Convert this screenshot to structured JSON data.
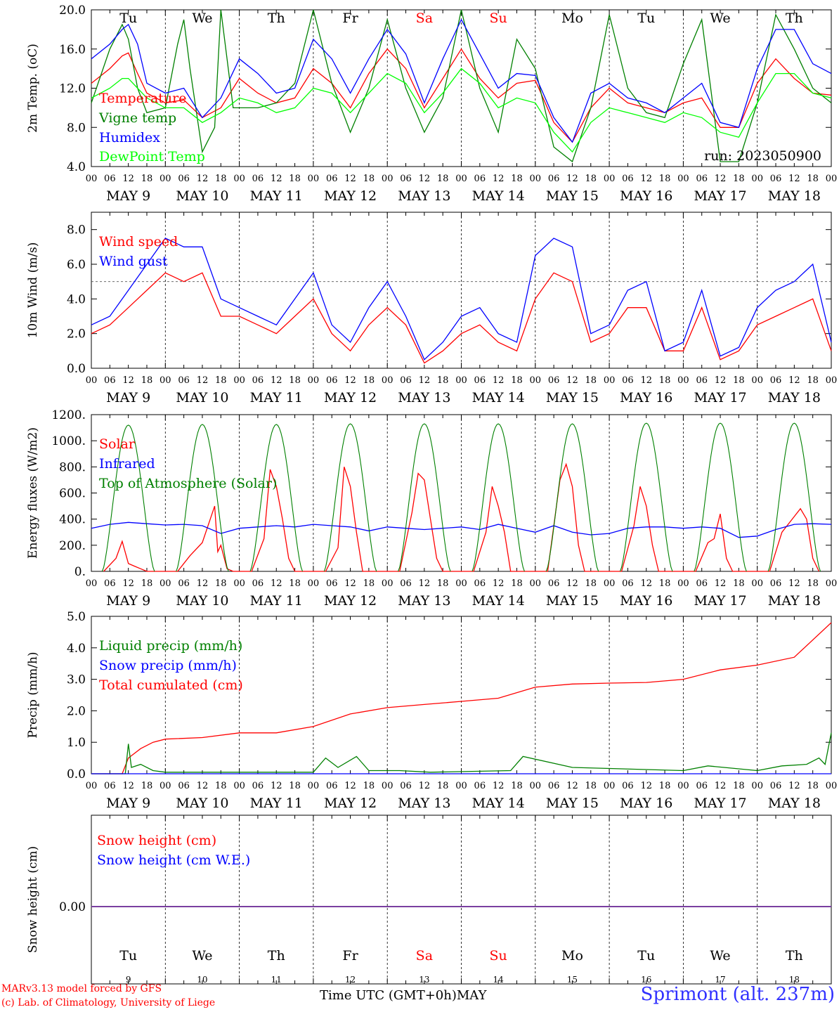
{
  "chart_data": [
    {
      "type": "line",
      "ylabel": "2m Temp. (oC)",
      "ylim": [
        4.0,
        20.0
      ],
      "yticks": [
        "4.0",
        "8.0",
        "12.0",
        "16.0",
        "20.0"
      ],
      "legend": [
        "Temperature",
        "Vigne temp",
        "Humidex",
        "DewPoint Temp"
      ],
      "annotation": "run: 2023050900",
      "series": [
        {
          "name": "Temperature",
          "color": "#ff0000",
          "x": [
            0,
            6,
            10,
            12,
            15,
            18,
            24,
            30,
            36,
            42,
            48,
            54,
            60,
            66,
            72,
            78,
            84,
            90,
            96,
            102,
            108,
            114,
            120,
            126,
            132,
            138,
            144,
            150,
            156,
            162,
            168,
            174,
            180,
            186,
            192,
            198,
            204,
            210,
            216,
            222,
            228,
            234,
            240
          ],
          "values": [
            12.5,
            14.0,
            15.3,
            15.6,
            13.5,
            11.5,
            10.5,
            10.8,
            9.0,
            10.0,
            13.0,
            11.5,
            10.5,
            11.0,
            14.0,
            12.5,
            10.0,
            13.5,
            16.0,
            14.0,
            10.0,
            13.0,
            16.0,
            13.0,
            11.0,
            12.5,
            12.8,
            8.5,
            6.5,
            10.0,
            12.0,
            10.5,
            10.0,
            9.5,
            10.5,
            11.0,
            8.0,
            8.0,
            12.5,
            15.0,
            13.0,
            11.5,
            11.3
          ]
        },
        {
          "name": "Vigne temp",
          "color": "#008000",
          "x": [
            0,
            6,
            10,
            12,
            15,
            18,
            24,
            28,
            30,
            32,
            36,
            40,
            42,
            44,
            46,
            48,
            54,
            60,
            66,
            72,
            78,
            84,
            90,
            96,
            102,
            108,
            114,
            120,
            126,
            132,
            138,
            144,
            150,
            156,
            162,
            168,
            174,
            180,
            186,
            192,
            198,
            204,
            210,
            216,
            222,
            228,
            234,
            240
          ],
          "values": [
            10.5,
            16.0,
            18.5,
            17.0,
            12.0,
            9.5,
            10.0,
            16.5,
            19.0,
            14.0,
            5.5,
            8.0,
            20.0,
            15.0,
            10.0,
            10.0,
            10.0,
            10.5,
            12.5,
            20.0,
            12.5,
            7.5,
            12.0,
            19.0,
            12.0,
            7.5,
            11.0,
            20.0,
            12.0,
            7.5,
            17.0,
            14.0,
            6.0,
            4.5,
            10.0,
            19.5,
            12.0,
            9.5,
            9.0,
            14.5,
            19.0,
            4.5,
            4.5,
            10.5,
            19.5,
            16.0,
            12.0,
            10.5
          ]
        },
        {
          "name": "Humidex",
          "color": "#0000ff",
          "x": [
            0,
            6,
            10,
            12,
            15,
            18,
            24,
            30,
            36,
            42,
            48,
            54,
            60,
            66,
            72,
            78,
            84,
            90,
            96,
            102,
            108,
            114,
            120,
            126,
            132,
            138,
            144,
            150,
            156,
            162,
            168,
            174,
            180,
            186,
            192,
            198,
            204,
            210,
            216,
            222,
            228,
            234,
            240
          ],
          "values": [
            15.0,
            16.5,
            18.0,
            18.5,
            16.5,
            12.5,
            11.5,
            12.0,
            9.0,
            11.0,
            15.0,
            13.5,
            11.5,
            12.0,
            17.0,
            15.0,
            11.5,
            15.0,
            18.0,
            15.5,
            10.5,
            15.0,
            19.0,
            15.5,
            12.0,
            13.5,
            13.3,
            9.0,
            6.5,
            11.5,
            12.5,
            11.0,
            10.5,
            9.5,
            11.0,
            12.5,
            8.5,
            8.0,
            14.0,
            18.0,
            18.0,
            14.5,
            13.5
          ]
        },
        {
          "name": "DewPoint Temp",
          "color": "#00ff00",
          "x": [
            0,
            6,
            10,
            12,
            15,
            18,
            24,
            30,
            36,
            42,
            48,
            54,
            60,
            66,
            72,
            78,
            84,
            90,
            96,
            102,
            108,
            114,
            120,
            126,
            132,
            138,
            144,
            150,
            156,
            162,
            168,
            174,
            180,
            186,
            192,
            198,
            204,
            210,
            216,
            222,
            228,
            234,
            240
          ],
          "values": [
            11.0,
            12.0,
            13.0,
            13.0,
            12.0,
            11.0,
            10.0,
            10.0,
            8.5,
            9.5,
            11.0,
            10.5,
            9.5,
            10.0,
            12.0,
            11.5,
            9.5,
            11.5,
            13.5,
            12.5,
            9.5,
            11.5,
            14.0,
            12.5,
            10.0,
            11.0,
            10.5,
            7.5,
            5.5,
            8.5,
            10.0,
            9.5,
            9.0,
            8.5,
            9.5,
            9.0,
            7.5,
            7.0,
            10.5,
            13.5,
            13.5,
            11.5,
            11.0
          ]
        }
      ]
    },
    {
      "type": "line",
      "ylabel": "10m Wind (m/s)",
      "ylim": [
        0.0,
        9.0
      ],
      "yticks": [
        "0.0",
        "2.0",
        "4.0",
        "6.0",
        "8.0"
      ],
      "reference_line": 5.0,
      "legend": [
        "Wind speed",
        "Wind gust"
      ],
      "series": [
        {
          "name": "Wind speed",
          "color": "#ff0000",
          "x": [
            0,
            6,
            12,
            18,
            24,
            30,
            36,
            42,
            48,
            54,
            60,
            66,
            72,
            78,
            84,
            90,
            96,
            102,
            108,
            114,
            120,
            126,
            132,
            138,
            144,
            150,
            156,
            162,
            168,
            174,
            180,
            186,
            192,
            198,
            204,
            210,
            216,
            222,
            228,
            234,
            240
          ],
          "values": [
            2.0,
            2.5,
            3.5,
            4.5,
            5.5,
            5.0,
            5.5,
            3.0,
            3.0,
            2.5,
            2.0,
            3.0,
            4.0,
            2.0,
            1.0,
            2.5,
            3.5,
            2.5,
            0.3,
            1.0,
            2.0,
            2.5,
            1.5,
            1.0,
            4.0,
            5.5,
            5.0,
            1.5,
            2.0,
            3.5,
            3.5,
            1.0,
            1.0,
            3.5,
            0.5,
            1.0,
            2.5,
            3.0,
            3.5,
            4.0,
            1.0
          ]
        },
        {
          "name": "Wind gust",
          "color": "#0000ff",
          "x": [
            0,
            6,
            12,
            18,
            24,
            30,
            36,
            42,
            48,
            54,
            60,
            66,
            72,
            78,
            84,
            90,
            96,
            102,
            108,
            114,
            120,
            126,
            132,
            138,
            144,
            150,
            156,
            162,
            168,
            174,
            180,
            186,
            192,
            198,
            204,
            210,
            216,
            222,
            228,
            234,
            240
          ],
          "values": [
            2.5,
            3.0,
            4.5,
            6.0,
            7.5,
            7.0,
            7.0,
            4.0,
            3.5,
            3.0,
            2.5,
            4.0,
            5.5,
            2.5,
            1.5,
            3.5,
            5.0,
            3.0,
            0.5,
            1.5,
            3.0,
            3.5,
            2.0,
            1.5,
            6.5,
            7.5,
            7.0,
            2.0,
            2.5,
            4.5,
            5.0,
            1.0,
            1.5,
            4.5,
            0.7,
            1.2,
            3.5,
            4.5,
            5.0,
            6.0,
            1.5
          ]
        }
      ]
    },
    {
      "type": "line",
      "ylabel": "Energy fluxes (W/m2)",
      "ylim": [
        0,
        1200
      ],
      "yticks": [
        "0.",
        "200.",
        "400.",
        "600.",
        "800.",
        "1000.",
        "1200."
      ],
      "legend": [
        "Solar",
        "Infrared",
        "Top of Atmosphere (Solar)"
      ],
      "toa_peak": [
        1120,
        1125,
        1125,
        1130,
        1130,
        1130,
        1130,
        1135,
        1135,
        1135
      ],
      "series": [
        {
          "name": "Solar",
          "color": "#ff0000",
          "x": [
            4,
            8,
            10,
            12,
            14,
            16,
            18,
            20,
            28,
            32,
            36,
            40,
            41,
            42,
            44,
            46,
            52,
            56,
            58,
            60,
            62,
            64,
            66,
            68,
            76,
            80,
            82,
            84,
            86,
            88,
            90,
            92,
            100,
            104,
            106,
            108,
            110,
            112,
            114,
            116,
            124,
            128,
            130,
            132,
            134,
            136,
            138,
            140,
            148,
            152,
            154,
            156,
            158,
            160,
            162,
            164,
            172,
            176,
            178,
            180,
            182,
            184,
            186,
            188,
            196,
            200,
            202,
            204,
            206,
            208,
            210,
            212,
            220,
            224,
            228,
            230,
            232,
            234,
            236
          ],
          "values": [
            0,
            100,
            230,
            60,
            40,
            20,
            0,
            0,
            0,
            120,
            220,
            500,
            150,
            200,
            20,
            0,
            0,
            250,
            780,
            650,
            400,
            100,
            0,
            0,
            0,
            180,
            800,
            650,
            300,
            0,
            0,
            0,
            0,
            450,
            750,
            700,
            400,
            100,
            0,
            0,
            0,
            300,
            650,
            500,
            300,
            0,
            0,
            0,
            0,
            700,
            820,
            650,
            200,
            0,
            0,
            0,
            0,
            350,
            650,
            500,
            200,
            0,
            0,
            0,
            0,
            220,
            250,
            440,
            100,
            0,
            0,
            0,
            0,
            300,
            420,
            480,
            400,
            100,
            0
          ]
        },
        {
          "name": "Infrared",
          "color": "#0000ff",
          "x": [
            0,
            6,
            12,
            18,
            24,
            30,
            36,
            42,
            48,
            54,
            60,
            66,
            72,
            78,
            84,
            90,
            96,
            102,
            108,
            114,
            120,
            126,
            132,
            138,
            144,
            150,
            156,
            162,
            168,
            174,
            180,
            186,
            192,
            198,
            204,
            210,
            216,
            222,
            228,
            234,
            240
          ],
          "values": [
            330,
            360,
            375,
            365,
            355,
            360,
            350,
            290,
            330,
            340,
            350,
            340,
            360,
            350,
            340,
            310,
            340,
            330,
            320,
            330,
            340,
            320,
            360,
            330,
            300,
            350,
            300,
            280,
            290,
            330,
            340,
            340,
            330,
            340,
            330,
            260,
            270,
            320,
            360,
            365,
            360
          ]
        },
        {
          "name": "Top of Atmosphere (Solar)",
          "color": "#008000"
        }
      ]
    },
    {
      "type": "line",
      "ylabel": "Precip (mm/h)",
      "ylim": [
        0.0,
        5.0
      ],
      "yticks": [
        "0.0",
        "1.0",
        "2.0",
        "3.0",
        "4.0",
        "5.0"
      ],
      "legend": [
        "Liquid precip (mm/h)",
        "Snow precip (mm/h)",
        "Total cumulated (cm)"
      ],
      "series": [
        {
          "name": "Total cumulated (cm)",
          "color": "#ff0000",
          "x": [
            0,
            10,
            12,
            16,
            20,
            24,
            36,
            48,
            60,
            72,
            84,
            96,
            108,
            120,
            132,
            144,
            156,
            168,
            180,
            192,
            204,
            216,
            228,
            240
          ],
          "values": [
            0,
            0,
            0.5,
            0.8,
            1.0,
            1.1,
            1.15,
            1.3,
            1.3,
            1.5,
            1.9,
            2.1,
            2.2,
            2.3,
            2.4,
            2.75,
            2.85,
            2.88,
            2.9,
            3.0,
            3.3,
            3.45,
            3.7,
            4.8
          ]
        },
        {
          "name": "Liquid precip (mm/h)",
          "color": "#008000",
          "x": [
            0,
            11,
            12,
            13,
            16,
            20,
            24,
            36,
            72,
            76,
            80,
            86,
            90,
            100,
            110,
            136,
            140,
            156,
            192,
            200,
            216,
            224,
            232,
            236,
            238,
            240
          ],
          "values": [
            0,
            0,
            0.95,
            0.2,
            0.3,
            0.1,
            0.05,
            0.05,
            0.05,
            0.5,
            0.2,
            0.55,
            0.1,
            0.1,
            0.05,
            0.1,
            0.55,
            0.2,
            0.1,
            0.25,
            0.1,
            0.25,
            0.3,
            0.5,
            0.3,
            1.3
          ]
        },
        {
          "name": "Snow precip (mm/h)",
          "color": "#0000ff",
          "x": [
            0,
            240
          ],
          "values": [
            0,
            0
          ]
        }
      ]
    },
    {
      "type": "line",
      "ylabel": "Snow height (cm)",
      "ytick": "0.00",
      "legend": [
        "Snow height (cm)",
        "Snow height (cm W.E.)"
      ],
      "series": [
        {
          "name": "Snow height (cm)",
          "color": "#ff0000",
          "x": [
            0,
            240
          ],
          "values": [
            0,
            0
          ]
        },
        {
          "name": "Snow height (cm W.E.)",
          "color": "#0000ff",
          "x": [
            0,
            240
          ],
          "values": [
            0,
            0
          ]
        }
      ]
    }
  ],
  "weekdays": [
    "Tu",
    "We",
    "Th",
    "Fr",
    "Sa",
    "Su",
    "Mo",
    "Tu",
    "We",
    "Th"
  ],
  "weekend_color": "#ff0000",
  "dates": [
    "MAY  9",
    "MAY 10",
    "MAY 11",
    "MAY 12",
    "MAY 13",
    "MAY 14",
    "MAY 15",
    "MAY 16",
    "MAY 17",
    "MAY 18"
  ],
  "day_numbers": [
    "9",
    "10",
    "11",
    "12",
    "13",
    "14",
    "15",
    "16",
    "17",
    "18"
  ],
  "hour_ticks": [
    "00",
    "06",
    "12",
    "18"
  ],
  "footer": {
    "credit_line1": "MARv3.13 model forced by GFS",
    "credit_line2": "(c) Lab. of Climatology, University of Liege",
    "x_title": "Time UTC (GMT+0h)MAY",
    "station": "Sprimont (alt. 237m)"
  }
}
